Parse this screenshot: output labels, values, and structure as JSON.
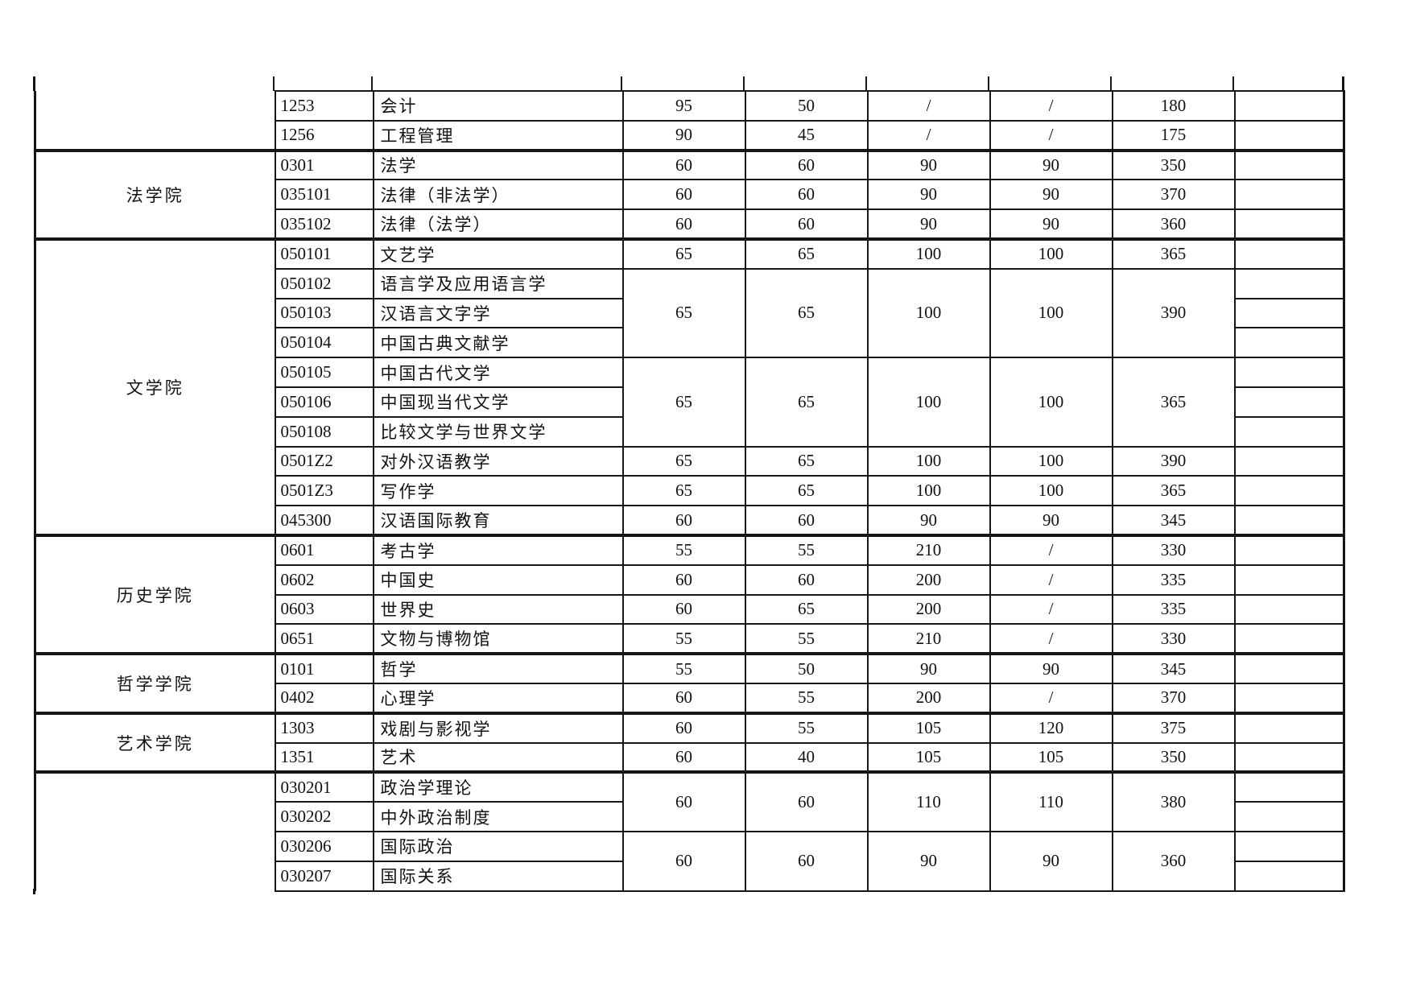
{
  "page": {
    "background": "#ffffff",
    "line_color": "#161616"
  },
  "table": {
    "description_columns": [
      "college",
      "code",
      "major",
      "score1",
      "score2",
      "score3",
      "score4",
      "total",
      "extra-empty"
    ],
    "groups": [
      {
        "college": "",
        "cut_top": true,
        "rows": [
          {
            "code": "1253",
            "major": "会计",
            "span": 1,
            "scores": [
              "95",
              "50",
              "/",
              "/",
              "180"
            ]
          },
          {
            "code": "1256",
            "major": "工程管理",
            "span": 1,
            "scores": [
              "90",
              "45",
              "/",
              "/",
              "175"
            ]
          }
        ]
      },
      {
        "college": "法学院",
        "rows": [
          {
            "code": "0301",
            "major": "法学",
            "span": 1,
            "scores": [
              "60",
              "60",
              "90",
              "90",
              "350"
            ]
          },
          {
            "code": "035101",
            "major": "法律（非法学）",
            "span": 1,
            "scores": [
              "60",
              "60",
              "90",
              "90",
              "370"
            ]
          },
          {
            "code": "035102",
            "major": "法律（法学）",
            "span": 1,
            "scores": [
              "60",
              "60",
              "90",
              "90",
              "360"
            ]
          }
        ]
      },
      {
        "college": "文学院",
        "rows": [
          {
            "code": "050101",
            "major": "文艺学",
            "span": 1,
            "scores": [
              "65",
              "65",
              "100",
              "100",
              "365"
            ]
          },
          {
            "code": "050102",
            "major": "语言学及应用语言学",
            "span": 3,
            "scores": [
              "65",
              "65",
              "100",
              "100",
              "390"
            ]
          },
          {
            "code": "050103",
            "major": "汉语言文字学"
          },
          {
            "code": "050104",
            "major": "中国古典文献学"
          },
          {
            "code": "050105",
            "major": "中国古代文学",
            "span": 3,
            "scores": [
              "65",
              "65",
              "100",
              "100",
              "365"
            ]
          },
          {
            "code": "050106",
            "major": "中国现当代文学"
          },
          {
            "code": "050108",
            "major": "比较文学与世界文学"
          },
          {
            "code": "0501Z2",
            "major": "对外汉语教学",
            "span": 1,
            "scores": [
              "65",
              "65",
              "100",
              "100",
              "390"
            ]
          },
          {
            "code": "0501Z3",
            "major": "写作学",
            "span": 1,
            "scores": [
              "65",
              "65",
              "100",
              "100",
              "365"
            ]
          },
          {
            "code": "045300",
            "major": "汉语国际教育",
            "span": 1,
            "scores": [
              "60",
              "60",
              "90",
              "90",
              "345"
            ]
          }
        ]
      },
      {
        "college": "历史学院",
        "rows": [
          {
            "code": "0601",
            "major": "考古学",
            "span": 1,
            "scores": [
              "55",
              "55",
              "210",
              "/",
              "330"
            ]
          },
          {
            "code": "0602",
            "major": "中国史",
            "span": 1,
            "scores": [
              "60",
              "60",
              "200",
              "/",
              "335"
            ]
          },
          {
            "code": "0603",
            "major": "世界史",
            "span": 1,
            "scores": [
              "60",
              "65",
              "200",
              "/",
              "335"
            ]
          },
          {
            "code": "0651",
            "major": "文物与博物馆",
            "span": 1,
            "scores": [
              "55",
              "55",
              "210",
              "/",
              "330"
            ]
          }
        ]
      },
      {
        "college": "哲学学院",
        "rows": [
          {
            "code": "0101",
            "major": "哲学",
            "span": 1,
            "scores": [
              "55",
              "50",
              "90",
              "90",
              "345"
            ]
          },
          {
            "code": "0402",
            "major": "心理学",
            "span": 1,
            "scores": [
              "60",
              "55",
              "200",
              "/",
              "370"
            ]
          }
        ]
      },
      {
        "college": "艺术学院",
        "rows": [
          {
            "code": "1303",
            "major": "戏剧与影视学",
            "span": 1,
            "scores": [
              "60",
              "55",
              "105",
              "120",
              "375"
            ]
          },
          {
            "code": "1351",
            "major": "艺术",
            "span": 1,
            "scores": [
              "60",
              "40",
              "105",
              "105",
              "350"
            ]
          }
        ]
      },
      {
        "college": "",
        "cut_bottom": true,
        "rows": [
          {
            "code": "030201",
            "major": "政治学理论",
            "span": 2,
            "scores": [
              "60",
              "60",
              "110",
              "110",
              "380"
            ]
          },
          {
            "code": "030202",
            "major": "中外政治制度"
          },
          {
            "code": "030206",
            "major": "国际政治",
            "span": 2,
            "scores": [
              "60",
              "60",
              "90",
              "90",
              "360"
            ]
          },
          {
            "code": "030207",
            "major": "国际关系"
          }
        ]
      }
    ]
  }
}
